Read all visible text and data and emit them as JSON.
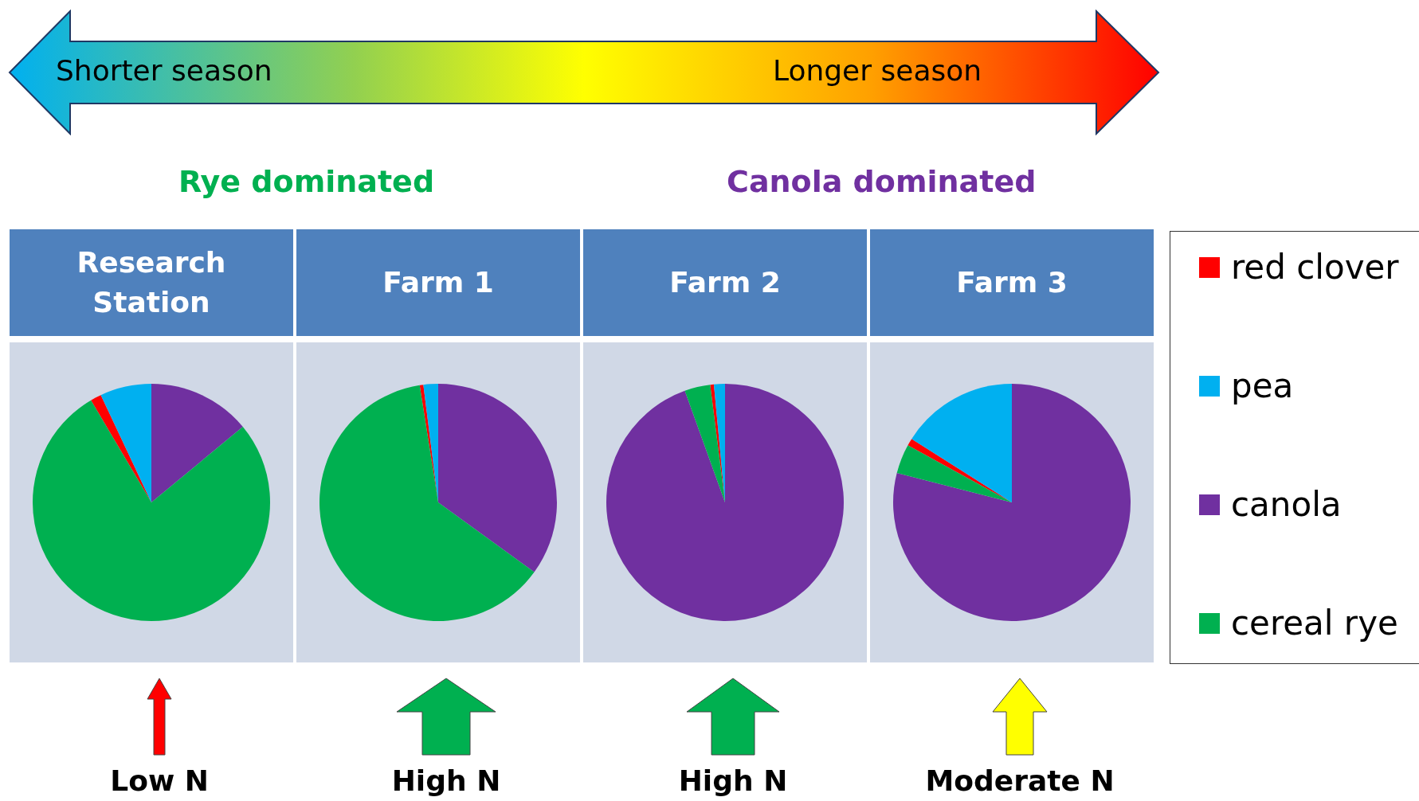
{
  "chart_data": [
    {
      "type": "pie",
      "title": "Research Station",
      "categories": [
        null,
        null,
        null,
        null
      ],
      "colors": [
        "#ff0000",
        "#00b0f0",
        "#7030a0",
        "#00b050"
      ],
      "values": [
        1.5,
        7,
        14,
        77.5
      ],
      "annotations": [
        "Shorter season",
        "Longer season",
        "Rye dominated",
        "Canola dominated",
        "Low N"
      ]
    },
    {
      "type": "pie",
      "title": "Farm 1",
      "categories": [
        null,
        null,
        null,
        null
      ],
      "colors": [
        "#ff0000",
        "#00b0f0",
        "#7030a0",
        "#00b050"
      ],
      "values": [
        0.5,
        2,
        35,
        62.5
      ],
      "annotations": [
        "High N"
      ]
    },
    {
      "type": "pie",
      "title": "Farm 2",
      "categories": [
        null,
        null,
        null,
        null
      ],
      "colors": [
        "#ff0000",
        "#00b0f0",
        "#7030a0",
        "#00b050"
      ],
      "values": [
        0.5,
        1.5,
        94.5,
        3.5
      ],
      "annotations": [
        "High N"
      ]
    },
    {
      "type": "pie",
      "title": "Farm 3",
      "categories": [
        "red clover",
        "pea",
        "canola",
        "cereal rye"
      ],
      "colors": [
        "#ff0000",
        "#00b0f0",
        "#7030a0",
        "#00b050"
      ],
      "values": [
        1,
        16,
        79,
        4
      ],
      "annotations": [
        "Moderate N"
      ],
      "legend": "right"
    }
  ]
}
